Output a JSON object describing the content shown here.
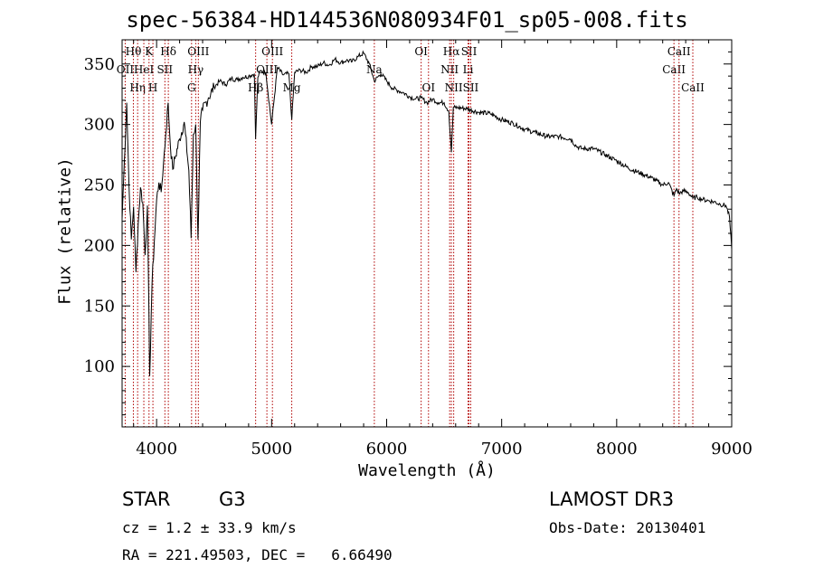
{
  "chart_data": {
    "type": "line",
    "title": "spec-56384-HD144536N080934F01_sp05-008.fits",
    "xlabel": "Wavelength (Å)",
    "ylabel": "Flux (relative)",
    "xlim": [
      3700,
      9000
    ],
    "ylim": [
      50,
      370
    ],
    "xticks": [
      4000,
      5000,
      6000,
      7000,
      8000,
      9000
    ],
    "yticks": [
      100,
      150,
      200,
      250,
      300,
      350
    ],
    "series": [
      {
        "name": "flux",
        "x": [
          3700,
          3720,
          3740,
          3760,
          3780,
          3800,
          3820,
          3840,
          3860,
          3880,
          3900,
          3920,
          3940,
          3960,
          3980,
          4000,
          4020,
          4040,
          4060,
          4080,
          4100,
          4120,
          4140,
          4160,
          4200,
          4240,
          4280,
          4300,
          4320,
          4340,
          4360,
          4380,
          4400,
          4450,
          4500,
          4550,
          4600,
          4650,
          4700,
          4750,
          4800,
          4850,
          4861,
          4880,
          4900,
          4950,
          5000,
          5050,
          5100,
          5150,
          5175,
          5200,
          5250,
          5300,
          5350,
          5400,
          5450,
          5500,
          5550,
          5600,
          5650,
          5700,
          5750,
          5800,
          5850,
          5893,
          5950,
          6000,
          6050,
          6100,
          6150,
          6200,
          6250,
          6300,
          6350,
          6400,
          6450,
          6500,
          6540,
          6563,
          6580,
          6620,
          6700,
          6800,
          6900,
          7000,
          7100,
          7200,
          7300,
          7400,
          7500,
          7600,
          7650,
          7700,
          7800,
          7900,
          8000,
          8100,
          8200,
          8300,
          8400,
          8450,
          8498,
          8520,
          8542,
          8580,
          8620,
          8662,
          8700,
          8750,
          8800,
          8850,
          8900,
          8950,
          8980,
          9000
        ],
        "values": [
          222,
          270,
          318,
          250,
          205,
          232,
          178,
          218,
          248,
          235,
          192,
          233,
          92,
          168,
          203,
          238,
          252,
          244,
          268,
          292,
          318,
          282,
          263,
          272,
          288,
          302,
          262,
          206,
          292,
          300,
          205,
          302,
          312,
          322,
          331,
          336,
          333,
          338,
          337,
          339,
          340,
          342,
          288,
          339,
          344,
          343,
          300,
          347,
          341,
          342,
          304,
          343,
          345,
          343,
          348,
          348,
          351,
          349,
          354,
          351,
          353,
          352,
          356,
          359,
          350,
          336,
          342,
          336,
          330,
          328,
          326,
          323,
          321,
          322,
          318,
          321,
          318,
          318,
          311,
          277,
          314,
          314,
          313,
          310,
          309,
          304,
          301,
          296,
          293,
          290,
          290,
          288,
          282,
          280,
          280,
          275,
          270,
          264,
          260,
          256,
          250,
          252,
          241,
          247,
          243,
          245,
          244,
          239,
          240,
          238,
          237,
          236,
          234,
          233,
          224,
          197
        ]
      }
    ],
    "lines": [
      {
        "name": "OII",
        "wl": 3727,
        "row": 1
      },
      {
        "name": "Hθ",
        "wl": 3798,
        "row": 0
      },
      {
        "name": "Hη",
        "wl": 3835,
        "row": 2
      },
      {
        "name": "HeI",
        "wl": 3889,
        "row": 1
      },
      {
        "name": "K",
        "wl": 3934,
        "row": 0
      },
      {
        "name": "H",
        "wl": 3968,
        "row": 2
      },
      {
        "name": "SII",
        "wl": 4072,
        "row": 1
      },
      {
        "name": "Hδ",
        "wl": 4102,
        "row": 0
      },
      {
        "name": "G",
        "wl": 4304,
        "row": 2
      },
      {
        "name": "OIII",
        "wl": 4363,
        "row": 0
      },
      {
        "name": "Hγ",
        "wl": 4340,
        "row": 1
      },
      {
        "name": "Hβ",
        "wl": 4861,
        "row": 2
      },
      {
        "name": "OIII",
        "wl": 4959,
        "row": 1
      },
      {
        "name": "OIII",
        "wl": 5007,
        "row": 0
      },
      {
        "name": "Mg",
        "wl": 5175,
        "row": 2
      },
      {
        "name": "Na",
        "wl": 5893,
        "row": 1
      },
      {
        "name": "OI",
        "wl": 6300,
        "row": 0
      },
      {
        "name": "OI",
        "wl": 6364,
        "row": 2
      },
      {
        "name": "NII",
        "wl": 6548,
        "row": 1
      },
      {
        "name": "Hα",
        "wl": 6563,
        "row": 0
      },
      {
        "name": "NII",
        "wl": 6583,
        "row": 2
      },
      {
        "name": "Li",
        "wl": 6708,
        "row": 1
      },
      {
        "name": "SII",
        "wl": 6716,
        "row": 0
      },
      {
        "name": "SII",
        "wl": 6731,
        "row": 2
      },
      {
        "name": "CaII",
        "wl": 8498,
        "row": 1
      },
      {
        "name": "CaII",
        "wl": 8542,
        "row": 0
      },
      {
        "name": "CaII",
        "wl": 8662,
        "row": 2
      }
    ]
  },
  "info": {
    "object_class": "STAR",
    "subclass": "G3",
    "survey": "LAMOST DR3",
    "cz": "cz = 1.2 ± 33.9 km/s",
    "obs_date": "Obs-Date: 20130401",
    "radec": "RA = 221.49503, DEC =   6.66490"
  }
}
